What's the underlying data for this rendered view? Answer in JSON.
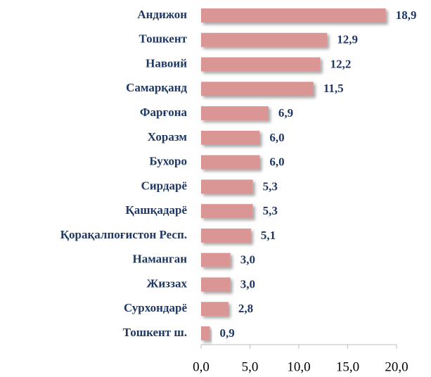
{
  "chart_data": {
    "type": "bar",
    "orientation": "horizontal",
    "categories": [
      "Андижон",
      "Тошкент",
      "Навоий",
      "Самарқанд",
      "Фарғона",
      "Хоразм",
      "Бухоро",
      "Сирдарё",
      "Қашқадарё",
      "Қорақалпоғистон Респ.",
      "Наманган",
      "Жиззах",
      "Сурхондарё",
      "Тошкент ш."
    ],
    "values": [
      18.9,
      12.9,
      12.2,
      11.5,
      6.9,
      6.0,
      6.0,
      5.3,
      5.3,
      5.1,
      3.0,
      3.0,
      2.8,
      0.9
    ],
    "value_labels": [
      "18,9",
      "12,9",
      "12,2",
      "11,5",
      "6,9",
      "6,0",
      "6,0",
      "5,3",
      "5,3",
      "5,1",
      "3,0",
      "3,0",
      "2,8",
      "0,9"
    ],
    "color": "#d99694",
    "xlim": [
      0,
      20
    ],
    "xticks": [
      {
        "value": 0,
        "label": "0,0"
      },
      {
        "value": 5,
        "label": "5,0"
      },
      {
        "value": 10,
        "label": "10,0"
      },
      {
        "value": 15,
        "label": "15,0"
      },
      {
        "value": 20,
        "label": "20,0"
      }
    ]
  }
}
